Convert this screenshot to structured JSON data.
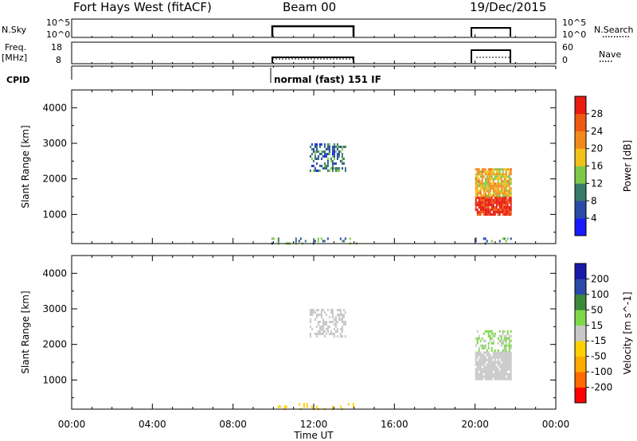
{
  "header": {
    "station": "Fort Hays West (fitACF)",
    "beam": "Beam 00",
    "date": "19/Dec/2015"
  },
  "left_labels": {
    "nsky": "N.Sky",
    "freq": "Freq.",
    "mhz": "[MHz]",
    "cpid": "CPID"
  },
  "right_labels": {
    "nsearch": "N.Search",
    "nave": "Nave"
  },
  "noise_axis": {
    "left_top": "10^5",
    "left_bottom": "10^0",
    "right_top": "10^5",
    "right_bottom": "10^0"
  },
  "freq_axis": {
    "left_top": "18",
    "left_bottom": "8",
    "right_top": "60",
    "right_bottom": "0"
  },
  "cpid_text": "normal (fast) 151 IF",
  "colors": {
    "power_scale": [
      "#1a1aff",
      "#2a4aa8",
      "#3a7a6a",
      "#7fc94a",
      "#f2c21a",
      "#f28a1a",
      "#ee5a12",
      "#e81a12"
    ],
    "velocity_scale": [
      "#ff0000",
      "#ff6a00",
      "#ffaa00",
      "#ffd000",
      "#c8c8c8",
      "#7fd84a",
      "#3a8a3a",
      "#2a4aa8",
      "#1a1aaa"
    ]
  },
  "chart_data": [
    {
      "type": "heatmap",
      "name": "power-panel",
      "title": "",
      "xlabel": "",
      "ylabel": "Slant Range [km]",
      "xlim": [
        0,
        24
      ],
      "ylim": [
        180,
        4500
      ],
      "yticks": [
        "1000",
        "2000",
        "3000",
        "4000"
      ],
      "colorbar": {
        "label": "Power [dB]",
        "ticks": [
          "4",
          "8",
          "12",
          "16",
          "20",
          "24",
          "28"
        ],
        "range": [
          0,
          30
        ]
      },
      "regions": [
        {
          "x": [
            9.9,
            14.2
          ],
          "y": [
            180,
            350
          ],
          "value": 10,
          "density": "sparse"
        },
        {
          "x": [
            11.8,
            13.6
          ],
          "y": [
            2200,
            3000
          ],
          "value": 8,
          "density": "medium"
        },
        {
          "x": [
            20.0,
            21.8
          ],
          "y": [
            1000,
            1500
          ],
          "value": 28,
          "density": "dense"
        },
        {
          "x": [
            20.0,
            21.8
          ],
          "y": [
            1500,
            2300
          ],
          "value": 18,
          "density": "dense"
        },
        {
          "x": [
            20.0,
            21.8
          ],
          "y": [
            180,
            350
          ],
          "value": 10,
          "density": "sparse"
        }
      ]
    },
    {
      "type": "heatmap",
      "name": "velocity-panel",
      "title": "",
      "xlabel": "Time UT",
      "ylabel": "Slant Range [km]",
      "xlim": [
        0,
        24
      ],
      "ylim": [
        180,
        4500
      ],
      "xticks": [
        "00:00",
        "04:00",
        "08:00",
        "12:00",
        "16:00",
        "20:00",
        "00:00"
      ],
      "yticks": [
        "1000",
        "2000",
        "3000",
        "4000"
      ],
      "colorbar": {
        "label": "Velocity [m s^-1]",
        "ticks": [
          "200",
          "100",
          "50",
          "15",
          "-15",
          "-50",
          "-100",
          "-200"
        ],
        "range": [
          -250,
          250
        ]
      },
      "regions": [
        {
          "x": [
            9.9,
            14.2
          ],
          "y": [
            180,
            350
          ],
          "value": -50,
          "density": "sparse"
        },
        {
          "x": [
            11.8,
            13.6
          ],
          "y": [
            2200,
            3000
          ],
          "value": 0,
          "density": "medium"
        },
        {
          "x": [
            20.0,
            21.8
          ],
          "y": [
            1000,
            1800
          ],
          "value": 0,
          "density": "dense"
        },
        {
          "x": [
            20.0,
            21.8
          ],
          "y": [
            1800,
            2400
          ],
          "value": 30,
          "density": "medium"
        }
      ]
    }
  ]
}
